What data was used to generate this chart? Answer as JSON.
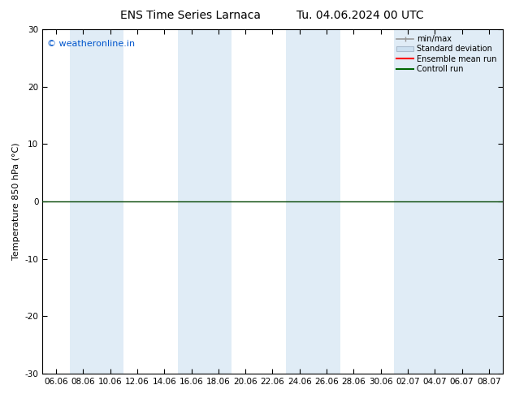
{
  "title_left": "ENS Time Series Larnaca",
  "title_right": "Tu. 04.06.2024 00 UTC",
  "ylabel": "Temperature 850 hPa (°C)",
  "ylim": [
    -30,
    30
  ],
  "yticks": [
    -30,
    -20,
    -10,
    0,
    10,
    20,
    30
  ],
  "xtick_labels": [
    "06.06",
    "08.06",
    "10.06",
    "12.06",
    "14.06",
    "16.06",
    "18.06",
    "20.06",
    "22.06",
    "24.06",
    "26.06",
    "28.06",
    "30.06",
    "02.07",
    "04.07",
    "06.07",
    "08.07"
  ],
  "watermark": "© weatheronline.in",
  "watermark_color": "#0055cc",
  "band_color": "#cce0f0",
  "band_alpha": 0.6,
  "legend_entries": [
    "min/max",
    "Standard deviation",
    "Ensemble mean run",
    "Controll run"
  ],
  "legend_colors": [
    "#999999",
    "#bbccdd",
    "#ff0000",
    "#006600"
  ],
  "bg_color": "#ffffff",
  "plot_bg_color": "#ffffff",
  "zero_line_color": "#004400",
  "title_fontsize": 10,
  "tick_fontsize": 7.5,
  "ylabel_fontsize": 8,
  "band_indices": [
    1,
    2,
    5,
    6,
    9,
    10,
    13,
    14,
    15,
    16
  ]
}
